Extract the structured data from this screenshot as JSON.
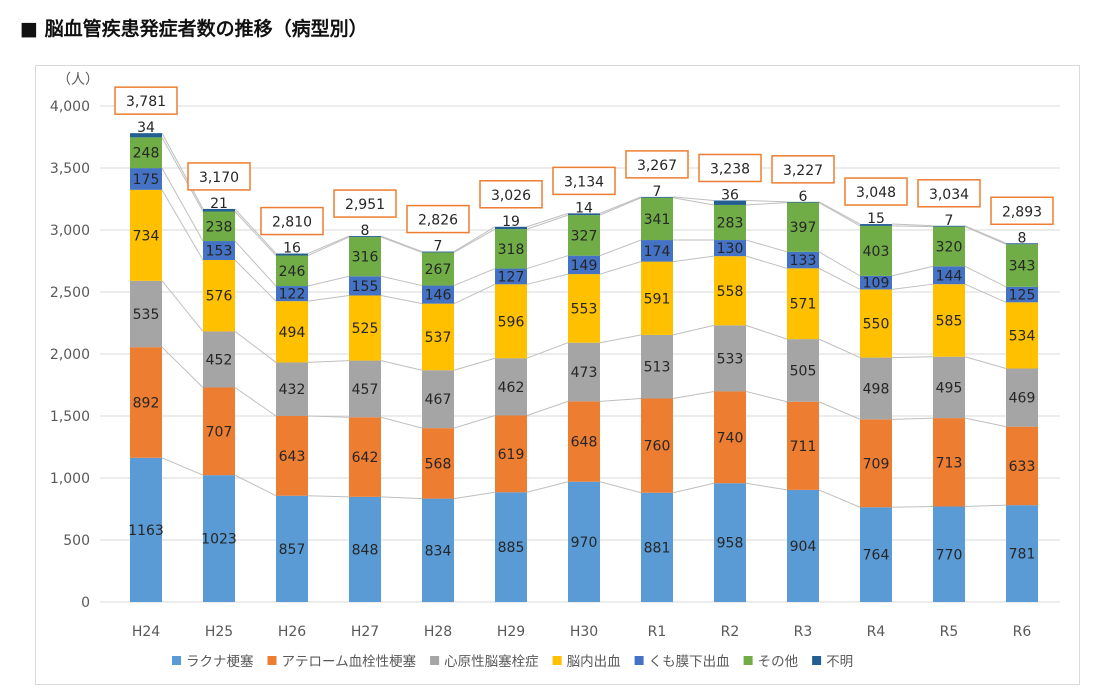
{
  "title": "■ 脳血管疾患発症者数の推移（病型別）",
  "chart_data": {
    "type": "bar",
    "stacked": true,
    "unit_label": "（人）",
    "categories": [
      "H24",
      "H25",
      "H26",
      "H27",
      "H28",
      "H29",
      "H30",
      "R1",
      "R2",
      "R3",
      "R4",
      "R5",
      "R6"
    ],
    "ylim": [
      0,
      4000
    ],
    "yticks": [
      0,
      500,
      1000,
      1500,
      2000,
      2500,
      3000,
      3500,
      4000
    ],
    "grid": true,
    "legend_position": "bottom",
    "series": [
      {
        "name": "ラクナ梗塞",
        "color": "#5b9bd5",
        "values": [
          1163,
          1023,
          857,
          848,
          834,
          885,
          970,
          881,
          958,
          904,
          764,
          770,
          781
        ]
      },
      {
        "name": "アテローム血栓性梗塞",
        "color": "#ed7d31",
        "values": [
          892,
          707,
          643,
          642,
          568,
          619,
          648,
          760,
          740,
          711,
          709,
          713,
          633
        ]
      },
      {
        "name": "心原性脳塞栓症",
        "color": "#a5a5a5",
        "values": [
          535,
          452,
          432,
          457,
          467,
          462,
          473,
          513,
          533,
          505,
          498,
          495,
          469
        ]
      },
      {
        "name": "脳内出血",
        "color": "#ffc000",
        "values": [
          734,
          576,
          494,
          525,
          537,
          596,
          553,
          591,
          558,
          571,
          550,
          585,
          534
        ]
      },
      {
        "name": "くも膜下出血",
        "color": "#4472c4",
        "values": [
          175,
          153,
          122,
          155,
          146,
          127,
          149,
          174,
          130,
          133,
          109,
          144,
          125
        ]
      },
      {
        "name": "その他",
        "color": "#70ad47",
        "values": [
          248,
          238,
          246,
          316,
          267,
          318,
          327,
          341,
          283,
          397,
          403,
          320,
          343
        ]
      },
      {
        "name": "不明",
        "color": "#255e91",
        "values": [
          34,
          21,
          16,
          8,
          7,
          19,
          14,
          7,
          36,
          6,
          15,
          7,
          8
        ]
      }
    ],
    "totals": [
      "3,781",
      "3,170",
      "2,810",
      "2,951",
      "2,826",
      "3,026",
      "3,134",
      "3,267",
      "3,238",
      "3,227",
      "3,048",
      "3,034",
      "2,893"
    ],
    "total_box_color": "#ed7d31"
  }
}
